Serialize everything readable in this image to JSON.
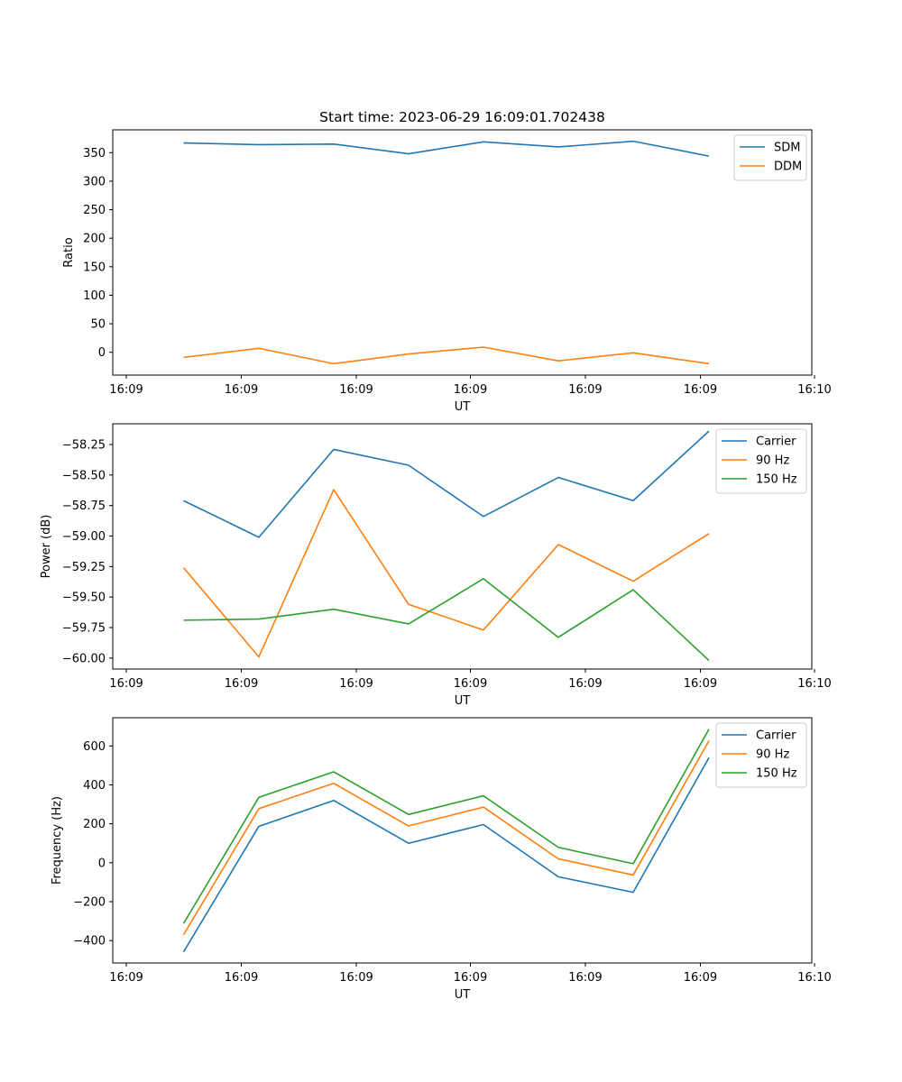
{
  "chart_data": [
    {
      "type": "line",
      "title": "Start time: 2023-06-29 16:09:01.702438",
      "xlabel": "UT",
      "ylabel": "Ratio",
      "xticks": [
        "16:09",
        "16:09",
        "16:09",
        "16:09",
        "16:09",
        "16:09",
        "16:10"
      ],
      "yticks": [
        0,
        50,
        100,
        150,
        200,
        250,
        300,
        350
      ],
      "ylim": [
        -40,
        390
      ],
      "legend": "top-right",
      "grid": false,
      "series": [
        {
          "name": "SDM",
          "color": "#1f77b4",
          "values": [
            367,
            364,
            365,
            348,
            369,
            360,
            370,
            344
          ]
        },
        {
          "name": "DDM",
          "color": "#ff7f0e",
          "values": [
            -9,
            7,
            -20,
            -3,
            9,
            -15,
            -1,
            -20
          ]
        }
      ]
    },
    {
      "type": "line",
      "title": "",
      "xlabel": "UT",
      "ylabel": "Power (dB)",
      "xticks": [
        "16:09",
        "16:09",
        "16:09",
        "16:09",
        "16:09",
        "16:09",
        "16:10"
      ],
      "yticks": [
        -60.0,
        -59.75,
        -59.5,
        -59.25,
        -59.0,
        -58.75,
        -58.5,
        -58.25
      ],
      "ytick_labels": [
        "−60.00",
        "−59.75",
        "−59.50",
        "−59.25",
        "−59.00",
        "−58.75",
        "−58.50",
        "−58.25"
      ],
      "ylim": [
        -60.09,
        -58.08
      ],
      "legend": "top-right",
      "grid": false,
      "series": [
        {
          "name": "Carrier",
          "color": "#1f77b4",
          "values": [
            -58.71,
            -59.01,
            -58.29,
            -58.42,
            -58.84,
            -58.52,
            -58.71,
            -58.14
          ]
        },
        {
          "name": "90 Hz",
          "color": "#ff7f0e",
          "values": [
            -59.26,
            -59.99,
            -58.62,
            -59.56,
            -59.77,
            -59.07,
            -59.37,
            -58.98
          ]
        },
        {
          "name": "150 Hz",
          "color": "#2ca02c",
          "values": [
            -59.69,
            -59.68,
            -59.6,
            -59.72,
            -59.35,
            -59.83,
            -59.44,
            -60.02
          ]
        }
      ]
    },
    {
      "type": "line",
      "title": "",
      "xlabel": "UT",
      "ylabel": "Frequency (Hz)",
      "xticks": [
        "16:09",
        "16:09",
        "16:09",
        "16:09",
        "16:09",
        "16:09",
        "16:10"
      ],
      "yticks": [
        -400,
        -200,
        0,
        200,
        400,
        600
      ],
      "ytick_labels": [
        "−400",
        "−200",
        "0",
        "200",
        "400",
        "600"
      ],
      "ylim": [
        -515,
        745
      ],
      "legend": "top-right",
      "grid": false,
      "series": [
        {
          "name": "Carrier",
          "color": "#1f77b4",
          "values": [
            -458,
            187,
            320,
            100,
            196,
            -72,
            -152,
            540
          ]
        },
        {
          "name": "90 Hz",
          "color": "#ff7f0e",
          "values": [
            -370,
            278,
            408,
            189,
            286,
            20,
            -63,
            627
          ]
        },
        {
          "name": "150 Hz",
          "color": "#2ca02c",
          "values": [
            -312,
            336,
            467,
            248,
            344,
            79,
            -5,
            686
          ]
        }
      ]
    }
  ]
}
